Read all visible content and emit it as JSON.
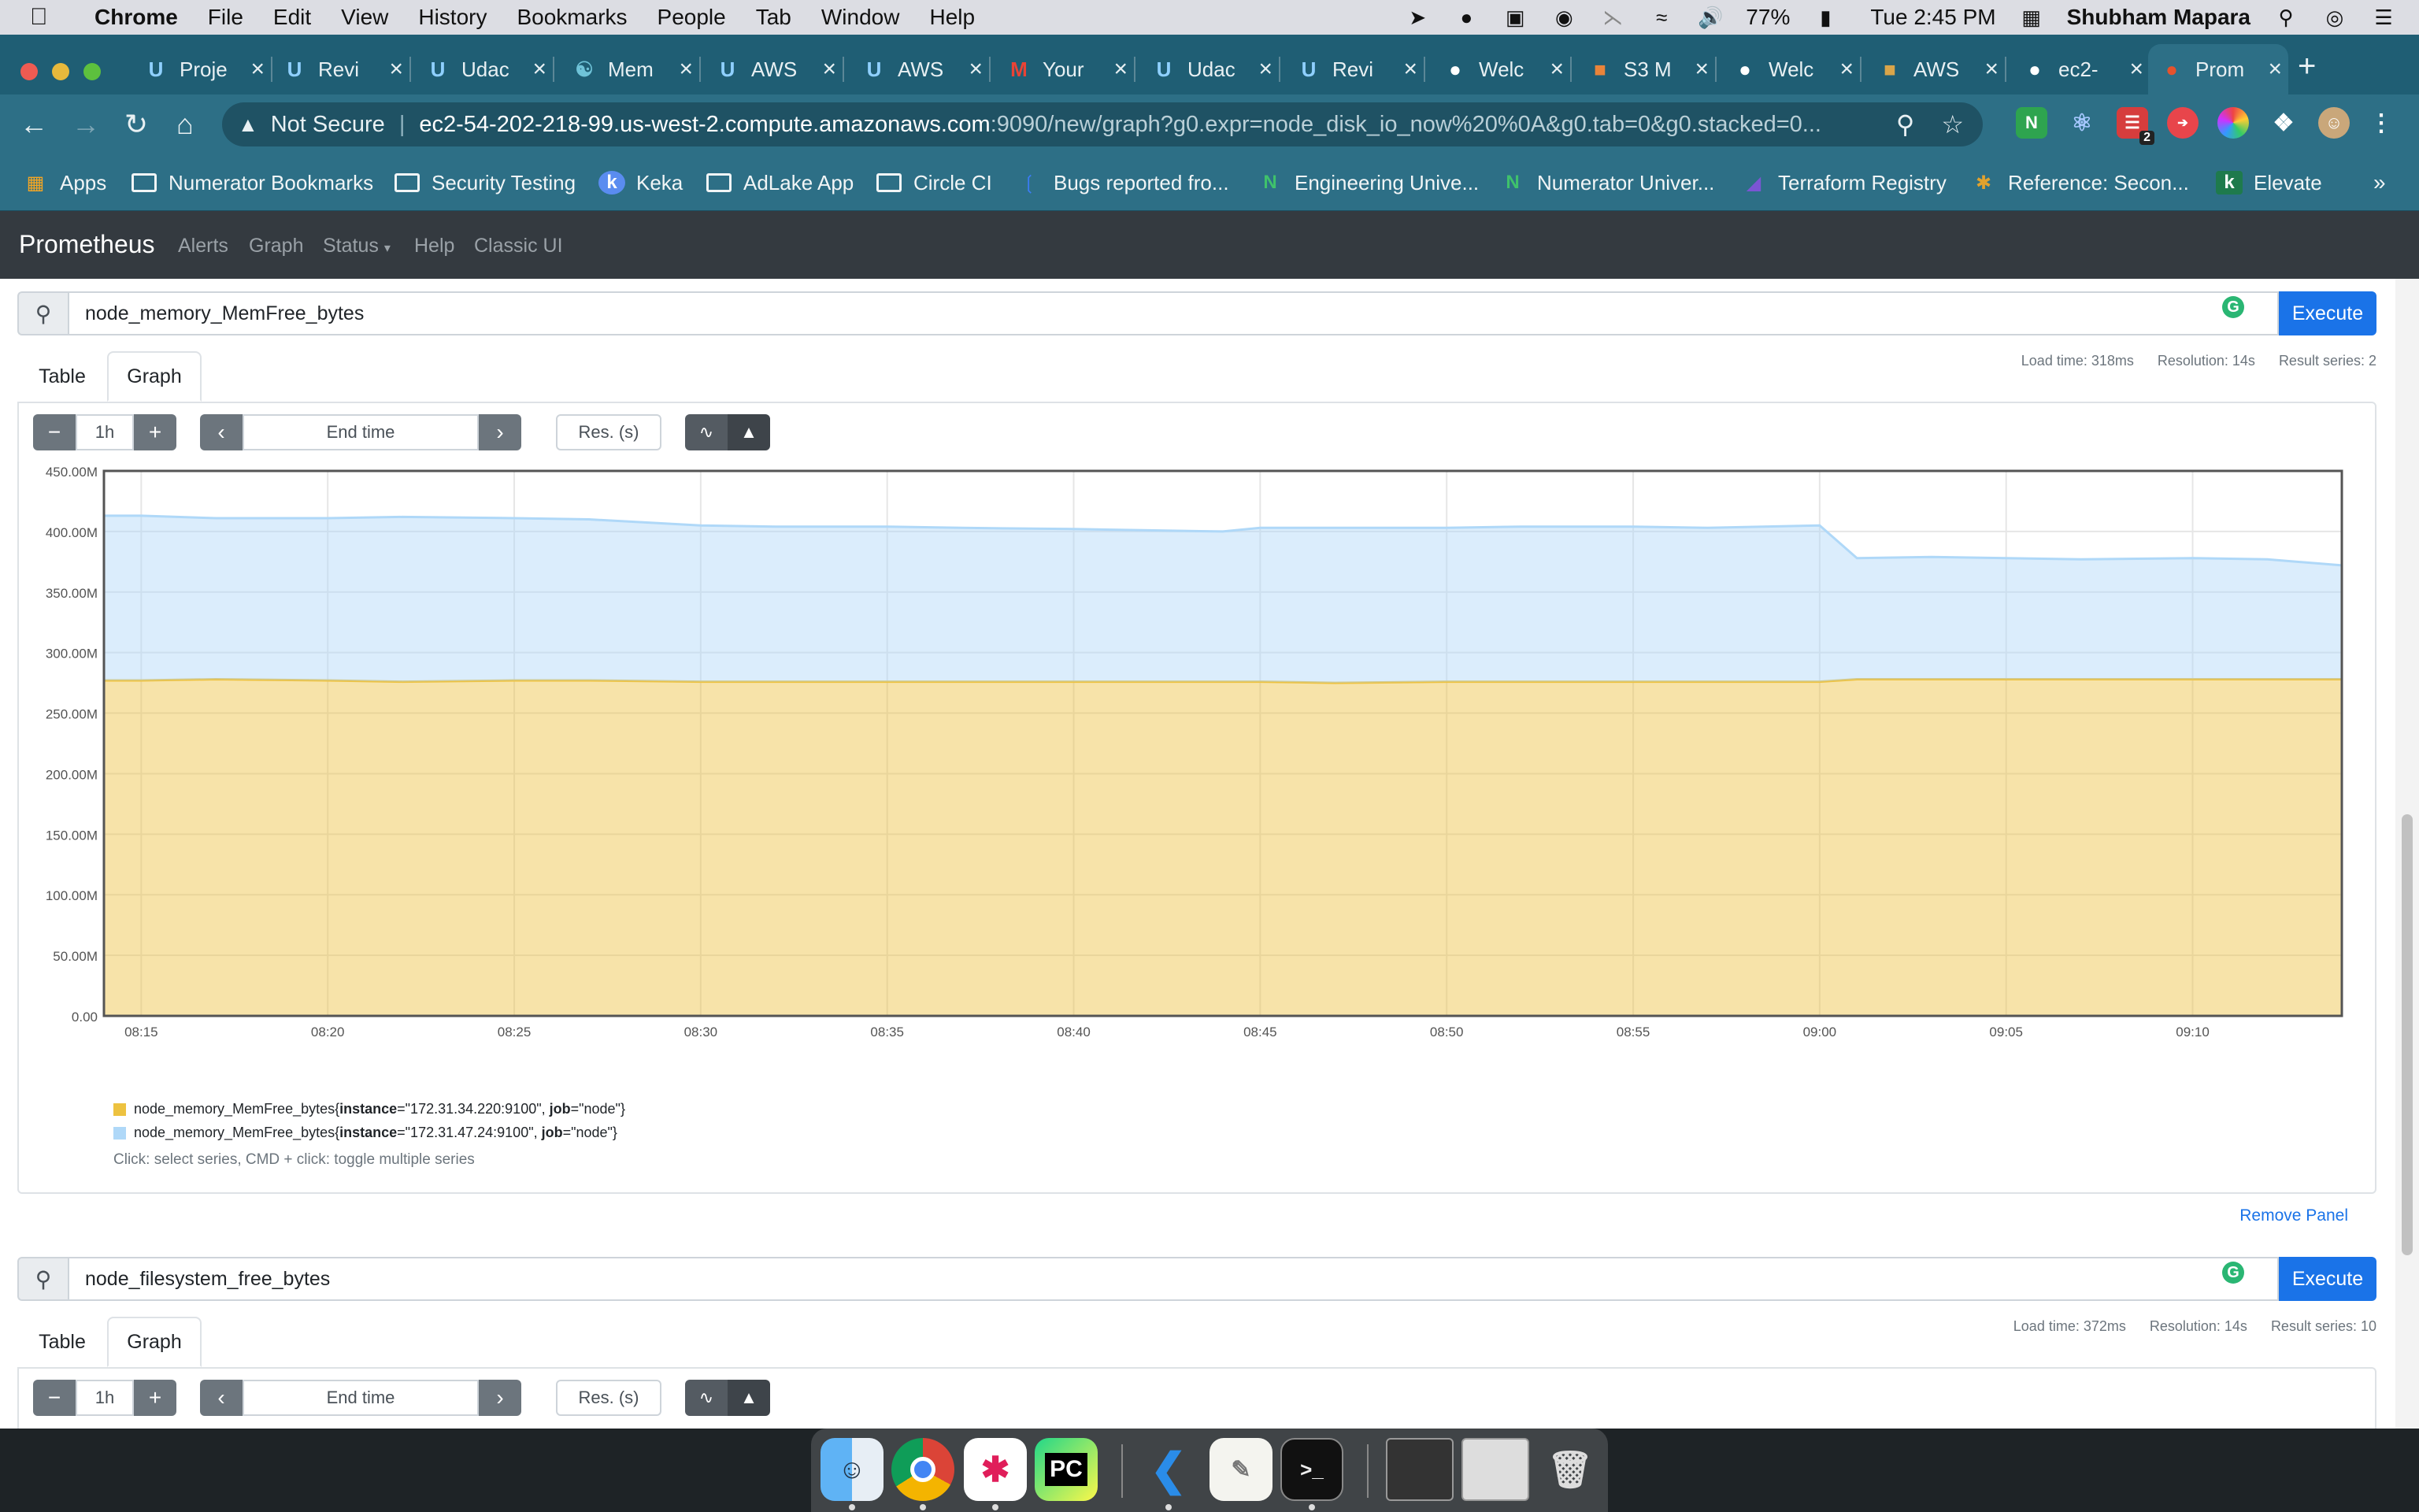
{
  "menubar": {
    "app": "Chrome",
    "items": [
      "File",
      "Edit",
      "View",
      "History",
      "Bookmarks",
      "People",
      "Tab",
      "Window",
      "Help"
    ],
    "battery": "77%",
    "clock": "Tue 2:45 PM",
    "user": "Shubham Mapara"
  },
  "tabs": [
    {
      "label": "Proje",
      "icon": "udacity-icon"
    },
    {
      "label": "Revi",
      "icon": "udacity-icon"
    },
    {
      "label": "Udac",
      "icon": "udacity-icon"
    },
    {
      "label": "Mem",
      "icon": "mem-icon"
    },
    {
      "label": "AWS",
      "icon": "udacity-icon"
    },
    {
      "label": "AWS",
      "icon": "udacity-icon"
    },
    {
      "label": "Your",
      "icon": "gmail-icon"
    },
    {
      "label": "Udac",
      "icon": "udacity-icon"
    },
    {
      "label": "Revi",
      "icon": "udacity-icon"
    },
    {
      "label": "Welc",
      "icon": "globe-icon"
    },
    {
      "label": "S3 M",
      "icon": "aws-s3-icon"
    },
    {
      "label": "Welc",
      "icon": "globe-icon"
    },
    {
      "label": "AWS",
      "icon": "aws-box-icon"
    },
    {
      "label": "ec2-",
      "icon": "globe-icon"
    },
    {
      "label": "Prom",
      "icon": "prometheus-icon"
    }
  ],
  "address": {
    "security": "Not Secure",
    "host": "ec2-54-202-218-99.us-west-2.compute.amazonaws.com",
    "path": ":9090/new/graph?g0.expr=node_disk_io_now%20%0A&g0.tab=0&g0.stacked=0..."
  },
  "extensions": {
    "badge": "2"
  },
  "bookmarks": [
    "Apps",
    "Numerator Bookmarks",
    "Security Testing",
    "Keka",
    "AdLake App",
    "Circle CI",
    "Bugs reported fro...",
    "Engineering Unive...",
    "Numerator Univer...",
    "Terraform Registry",
    "Reference: Secon...",
    "Elevate"
  ],
  "prometheus": {
    "brand": "Prometheus",
    "nav": [
      "Alerts",
      "Graph",
      "Status",
      "Help",
      "Classic UI"
    ]
  },
  "panels": [
    {
      "expr": "node_memory_MemFree_bytes",
      "execute": "Execute",
      "load_time": "Load time: 318ms",
      "resolution": "Resolution: 14s",
      "result_series": "Result series: 2",
      "tab_table": "Table",
      "tab_graph": "Graph",
      "range": "1h",
      "end_time_placeholder": "End time",
      "res_placeholder": "Res. (s)",
      "legend": [
        {
          "metric": "node_memory_MemFree_bytes{",
          "k1": "instance",
          "v1": "=\"172.31.34.220:9100\", ",
          "k2": "job",
          "v2": "=\"node\"}"
        },
        {
          "metric": "node_memory_MemFree_bytes{",
          "k1": "instance",
          "v1": "=\"172.31.47.24:9100\", ",
          "k2": "job",
          "v2": "=\"node\"}"
        }
      ],
      "hint": "Click: select series, CMD + click: toggle multiple series",
      "remove": "Remove Panel"
    },
    {
      "expr": "node_filesystem_free_bytes",
      "execute": "Execute",
      "load_time": "Load time: 372ms",
      "resolution": "Resolution: 14s",
      "result_series": "Result series: 10",
      "tab_table": "Table",
      "tab_graph": "Graph",
      "range": "1h",
      "end_time_placeholder": "End time",
      "res_placeholder": "Res. (s)"
    }
  ],
  "chart_data": {
    "type": "area",
    "stacked": true,
    "x_unit": "time",
    "x": [
      "08:14",
      "08:15",
      "08:17",
      "08:20",
      "08:22",
      "08:25",
      "08:27",
      "08:30",
      "08:32",
      "08:35",
      "08:37",
      "08:40",
      "08:42",
      "08:44",
      "08:45",
      "08:47",
      "08:50",
      "08:52",
      "08:55",
      "08:57",
      "09:00",
      "09:01",
      "09:03",
      "09:05",
      "09:07",
      "09:10",
      "09:12",
      "09:14"
    ],
    "xticks": [
      "08:15",
      "08:20",
      "08:25",
      "08:30",
      "08:35",
      "08:40",
      "08:45",
      "08:50",
      "08:55",
      "09:00",
      "09:05",
      "09:10"
    ],
    "yticks": [
      "0.00",
      "50.00M",
      "100.00M",
      "150.00M",
      "200.00M",
      "250.00M",
      "300.00M",
      "350.00M",
      "400.00M",
      "450.00M"
    ],
    "ylim": [
      0,
      450
    ],
    "y_unit": "M",
    "grid": true,
    "legend_position": "bottom",
    "series": [
      {
        "name": "node_memory_MemFree_bytes{instance=\"172.31.34.220:9100\", job=\"node\"}",
        "color": "#edc240",
        "values": [
          277,
          277,
          278,
          277,
          276,
          277,
          277,
          276,
          276,
          276,
          276,
          276,
          276,
          276,
          276,
          275,
          276,
          276,
          276,
          276,
          276,
          278,
          278,
          278,
          278,
          278,
          278,
          278
        ]
      },
      {
        "name": "node_memory_MemFree_bytes{instance=\"172.31.47.24:9100\", job=\"node\"}",
        "color": "#afd8f8",
        "values": [
          136,
          136,
          133,
          134,
          136,
          134,
          133,
          129,
          128,
          128,
          127,
          126,
          125,
          124,
          127,
          128,
          127,
          128,
          128,
          127,
          129,
          100,
          101,
          100,
          99,
          100,
          99,
          94
        ]
      }
    ]
  }
}
